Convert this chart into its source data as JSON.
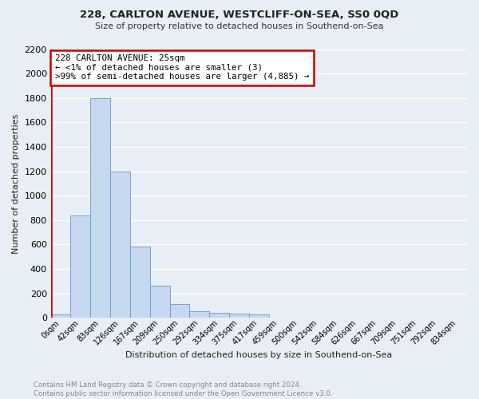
{
  "title": "228, CARLTON AVENUE, WESTCLIFF-ON-SEA, SS0 0QD",
  "subtitle": "Size of property relative to detached houses in Southend-on-Sea",
  "xlabel": "Distribution of detached houses by size in Southend-on-Sea",
  "ylabel": "Number of detached properties",
  "bar_labels": [
    "0sqm",
    "42sqm",
    "83sqm",
    "126sqm",
    "167sqm",
    "209sqm",
    "250sqm",
    "292sqm",
    "334sqm",
    "375sqm",
    "417sqm",
    "459sqm",
    "500sqm",
    "542sqm",
    "584sqm",
    "626sqm",
    "667sqm",
    "709sqm",
    "751sqm",
    "792sqm",
    "834sqm"
  ],
  "bar_values": [
    25,
    840,
    1800,
    1200,
    580,
    260,
    115,
    50,
    42,
    35,
    25,
    0,
    0,
    0,
    0,
    0,
    0,
    0,
    0,
    0,
    0
  ],
  "bar_color": "#c5d8ef",
  "bar_edge_color": "#6699cc",
  "annotation_text": "228 CARLTON AVENUE: 25sqm\n← <1% of detached houses are smaller (3)\n>99% of semi-detached houses are larger (4,885) →",
  "annotation_box_color": "#ffffff",
  "annotation_box_edge": "#cc0000",
  "ylim": [
    0,
    2200
  ],
  "yticks": [
    0,
    200,
    400,
    600,
    800,
    1000,
    1200,
    1400,
    1600,
    1800,
    2000,
    2200
  ],
  "footer_line1": "Contains HM Land Registry data © Crown copyright and database right 2024.",
  "footer_line2": "Contains public sector information licensed under the Open Government Licence v3.0.",
  "bg_color": "#e8eef5",
  "plot_bg": "#e8eef5",
  "grid_color": "#ffffff",
  "title_color": "#222222",
  "subtitle_color": "#333333",
  "footer_color": "#888888",
  "red_line_color": "#cc0000"
}
